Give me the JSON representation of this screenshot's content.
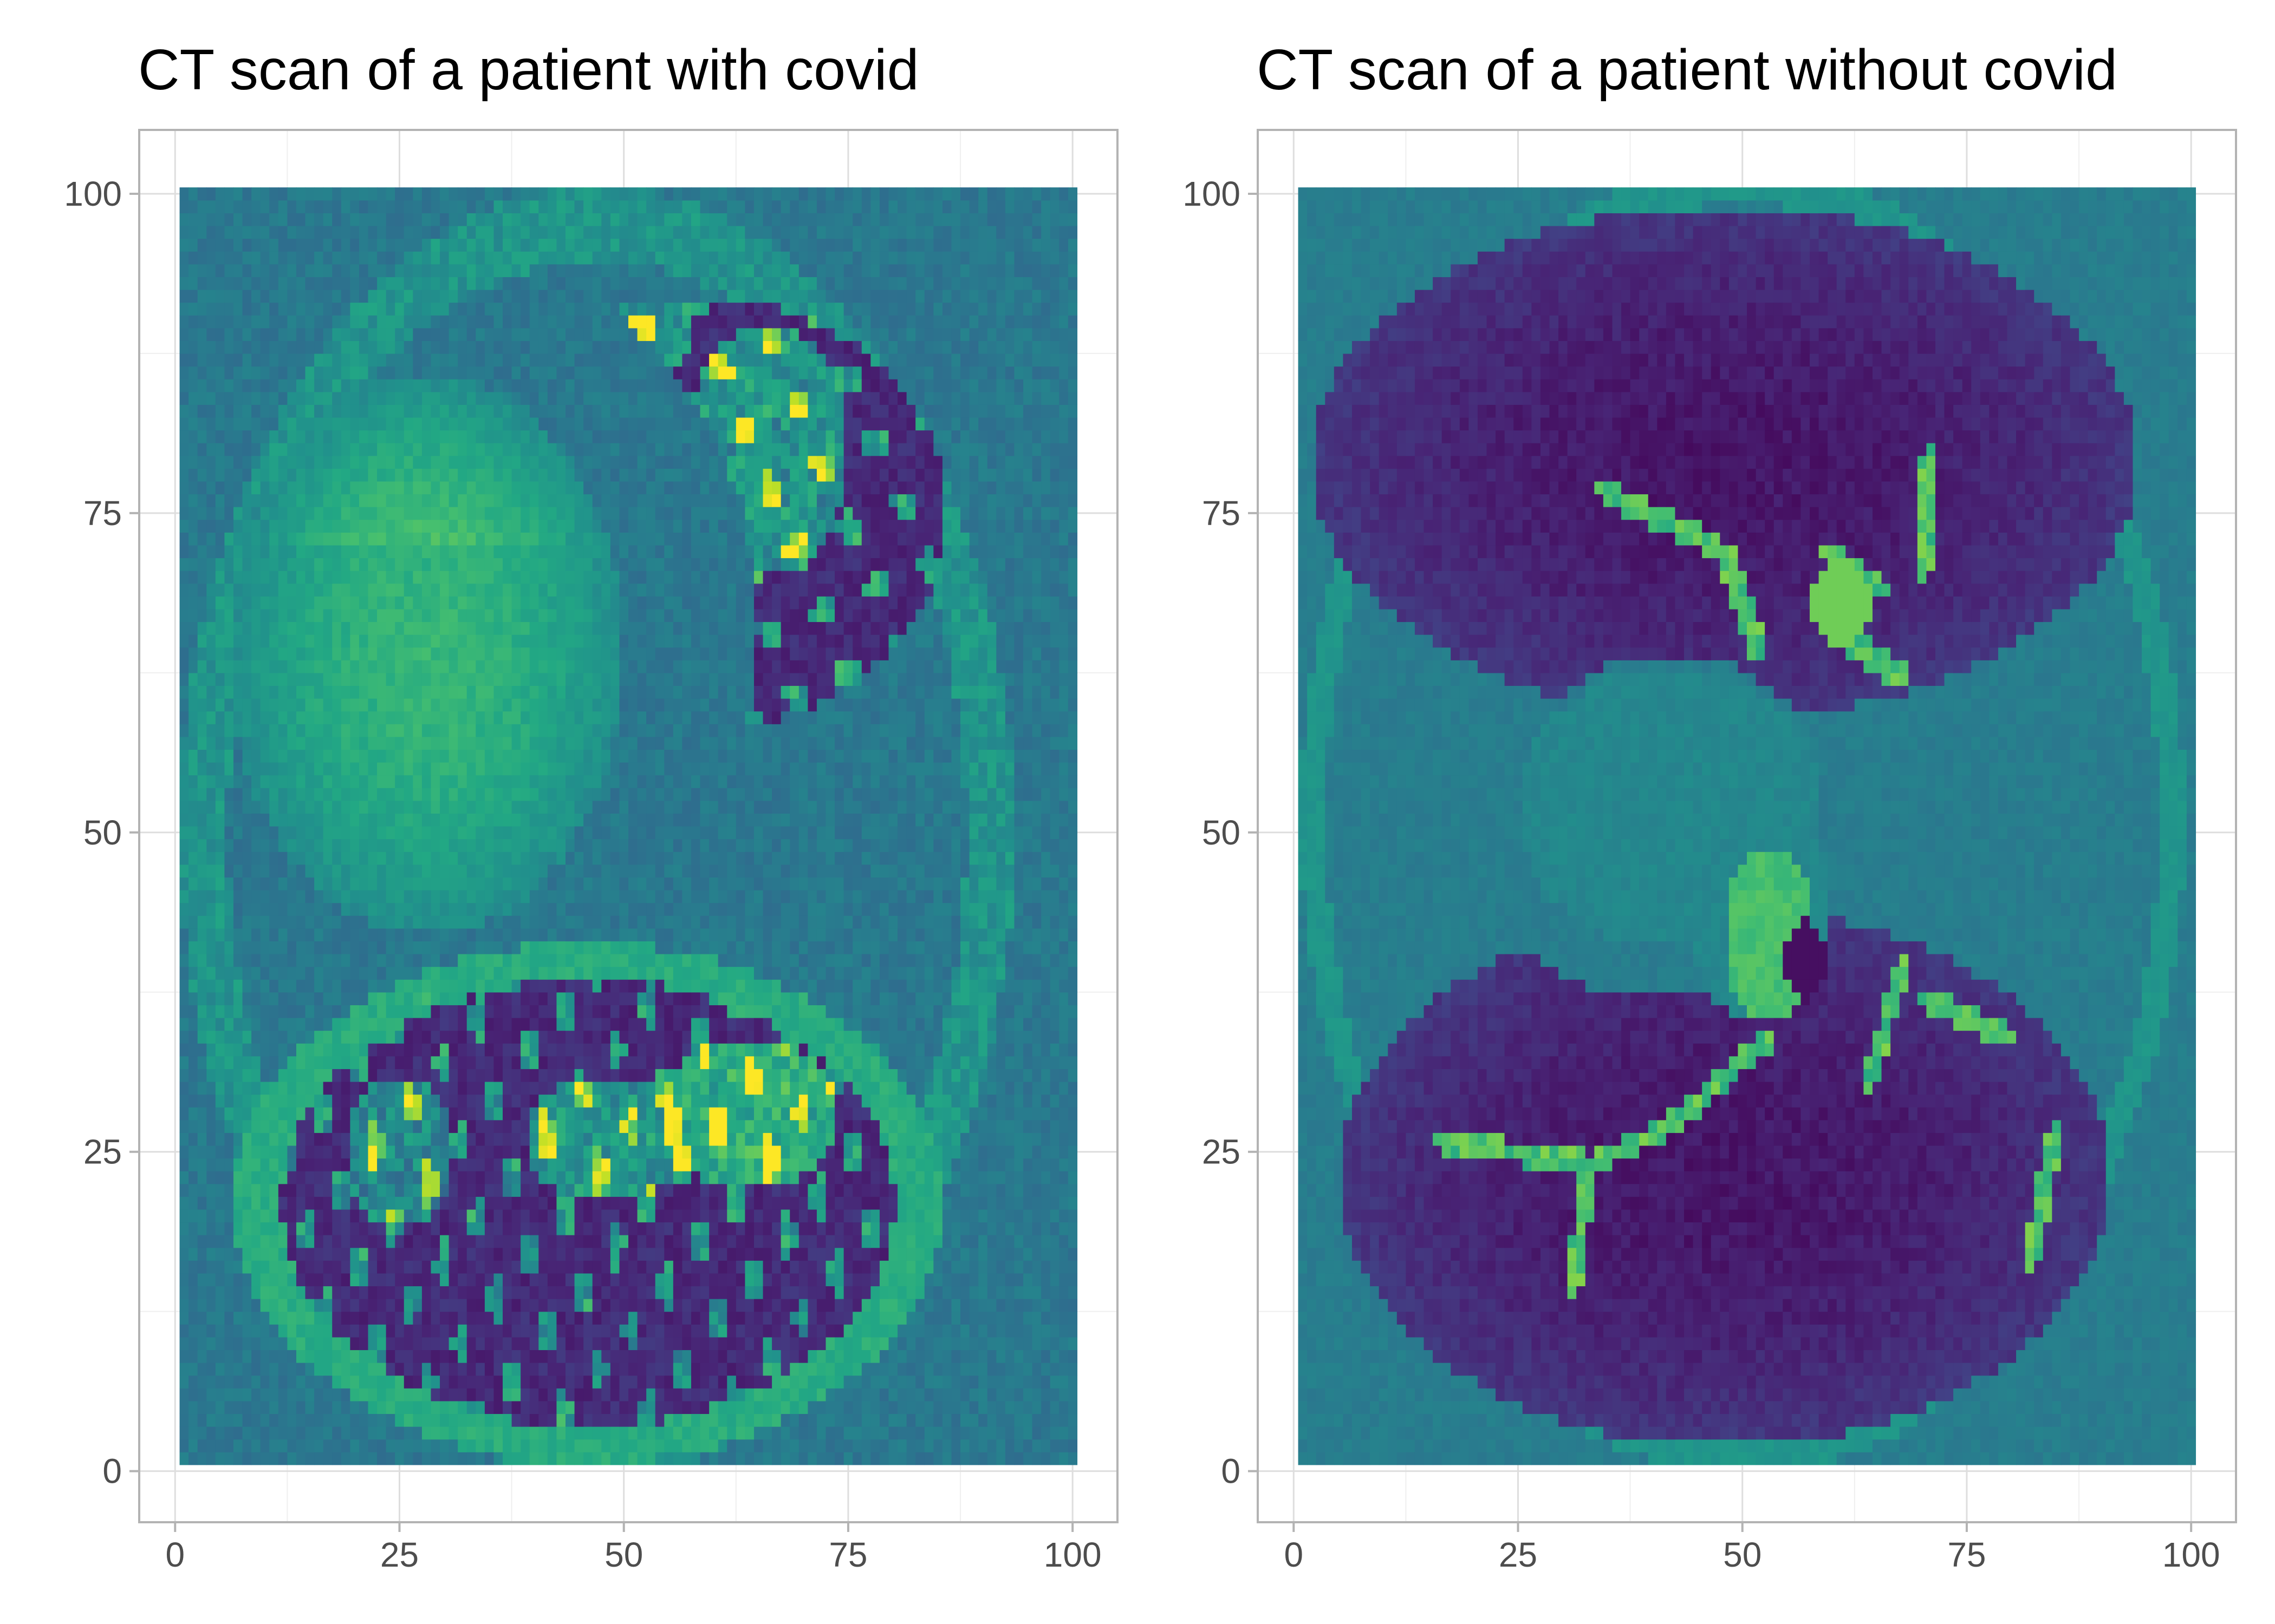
{
  "chart_data": [
    {
      "type": "heatmap",
      "title": "CT scan of a patient with covid",
      "xlabel": "",
      "ylabel": "",
      "xlim": [
        -4,
        105
      ],
      "ylim": [
        -4,
        105
      ],
      "x_ticks": [
        0,
        25,
        50,
        75,
        100
      ],
      "y_ticks": [
        0,
        25,
        50,
        75,
        100
      ],
      "x_tick_labels": [
        "0",
        "25",
        "50",
        "75",
        "100"
      ],
      "y_tick_labels": [
        "0",
        "25",
        "50",
        "75",
        "100"
      ],
      "grid": true,
      "colormap": "viridis",
      "value_range": [
        0,
        1
      ],
      "grid_size": [
        100,
        100
      ],
      "scan": "covid",
      "regions": {
        "background_level": 0.4,
        "lung_level": 0.12,
        "consolidation_level": 0.72,
        "outer_ring_level": 0.6
      }
    },
    {
      "type": "heatmap",
      "title": "CT scan of a patient without covid",
      "xlabel": "",
      "ylabel": "",
      "xlim": [
        -4,
        105
      ],
      "ylim": [
        -4,
        105
      ],
      "x_ticks": [
        0,
        25,
        50,
        75,
        100
      ],
      "y_ticks": [
        0,
        25,
        50,
        75,
        100
      ],
      "x_tick_labels": [
        "0",
        "25",
        "50",
        "75",
        "100"
      ],
      "y_tick_labels": [
        "0",
        "25",
        "50",
        "75",
        "100"
      ],
      "grid": true,
      "colormap": "viridis",
      "value_range": [
        0,
        1
      ],
      "grid_size": [
        100,
        100
      ],
      "scan": "normal",
      "regions": {
        "background_level": 0.42,
        "lung_level": 0.06,
        "heart_level": 0.46,
        "vessel_level": 0.82
      }
    }
  ],
  "colors": {
    "panel_border": "#b3b3b3",
    "grid_major": "#dedede",
    "grid_minor": "#efefef",
    "tick_label": "#4d4d4d",
    "title": "#000000"
  }
}
